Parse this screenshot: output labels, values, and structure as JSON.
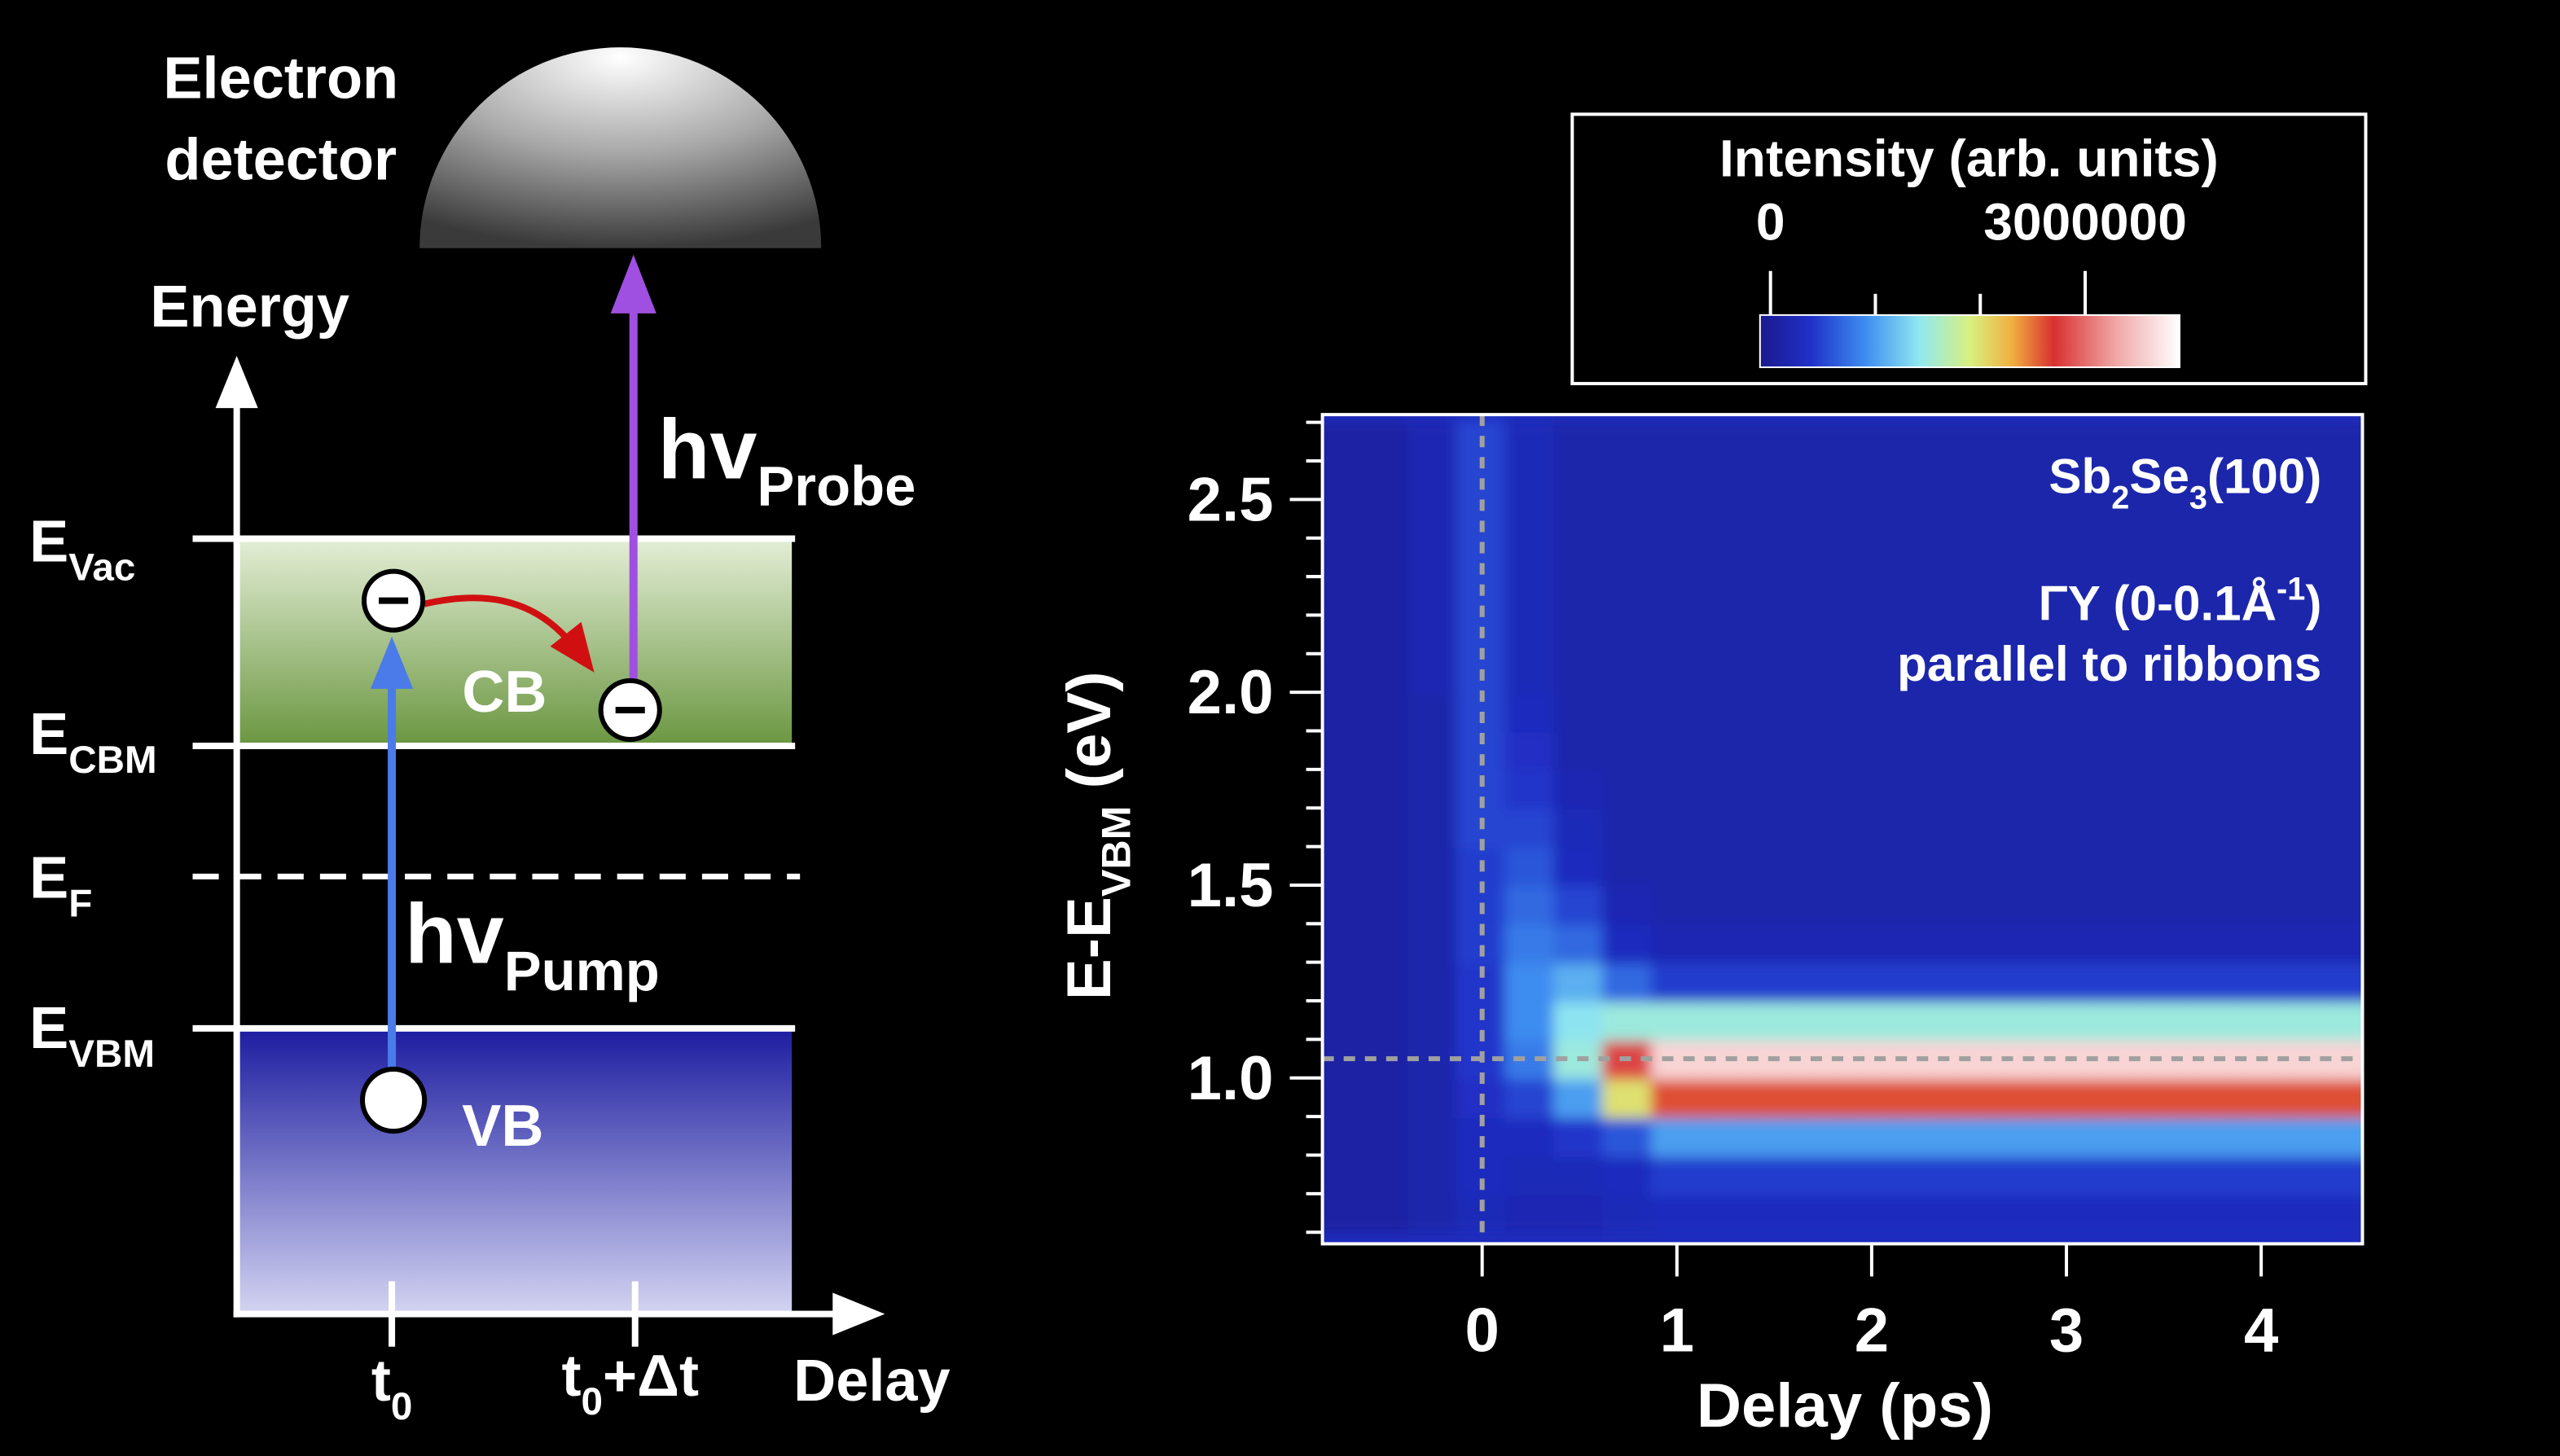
{
  "diagram": {
    "detector": [
      "Electron",
      "detector"
    ],
    "energy_axis": "Energy",
    "time_axis": "Delay",
    "levels": {
      "vac": [
        {
          "t": "E"
        },
        {
          "sub": "Vac"
        }
      ],
      "cbm": [
        {
          "t": "E"
        },
        {
          "sub": "CBM"
        }
      ],
      "f": [
        {
          "t": "E"
        },
        {
          "sub": "F"
        }
      ],
      "vbm": [
        {
          "t": "E"
        },
        {
          "sub": "VBM"
        }
      ]
    },
    "cb": "CB",
    "vb": "VB",
    "probe": [
      {
        "t": "hv"
      },
      {
        "sub": "Probe"
      }
    ],
    "pump": [
      {
        "t": "hv"
      },
      {
        "sub": "Pump"
      }
    ],
    "t0": [
      {
        "t": "t"
      },
      {
        "sub": "0"
      }
    ],
    "t1": [
      {
        "t": "t"
      },
      {
        "sub": "0"
      },
      {
        "t": "+Δt"
      }
    ]
  },
  "chart_data": {
    "type": "heatmap",
    "xlabel": "Delay (ps)",
    "ylabel": [
      {
        "t": "E-E"
      },
      {
        "sub": "VBM"
      },
      {
        "t": " (eV)"
      }
    ],
    "annotations": [
      [
        {
          "t": "Sb"
        },
        {
          "sub": "2"
        },
        {
          "t": "Se"
        },
        {
          "sub": "3"
        },
        {
          "t": "(100)"
        }
      ],
      [
        {
          "t": "ΓY (0-0.1Å"
        },
        {
          "sup": "-1"
        },
        {
          "t": ")"
        }
      ],
      [
        {
          "t": "parallel to ribbons"
        }
      ]
    ],
    "xlim": [
      -0.82,
      4.52
    ],
    "ylim": [
      0.57,
      2.72
    ],
    "xticks": [
      0,
      1,
      2,
      3,
      4
    ],
    "yticks": [
      {
        "value": 1,
        "label": "1.0"
      },
      1.5,
      {
        "value": 2,
        "label": "2.0"
      },
      2.5
    ],
    "yticks_minor": [
      0.6,
      0.7,
      0.8,
      0.9,
      1.1,
      1.2,
      1.3,
      1.4,
      1.6,
      1.7,
      1.8,
      1.9,
      2.1,
      2.2,
      2.3,
      2.4,
      2.6,
      2.7
    ],
    "markers": {
      "x": 0,
      "y": 1.05,
      "color": "#a0a0a0"
    },
    "colorbar": {
      "title": "Intensity (arb. units)",
      "ticks": [
        0,
        3000000
      ],
      "minor_ticks": [
        1000000,
        2000000
      ]
    },
    "zlim": [
      -100000,
      3900000
    ],
    "colormap": [
      [
        0,
        "#1a1a8c"
      ],
      [
        0.12,
        "#2030c8"
      ],
      [
        0.25,
        "#3c8cf0"
      ],
      [
        0.38,
        "#90e8f0"
      ],
      [
        0.5,
        "#d8f080"
      ],
      [
        0.6,
        "#f0b040"
      ],
      [
        0.7,
        "#d83030"
      ],
      [
        0.85,
        "#f0a8a8"
      ],
      [
        1,
        "#ffffff"
      ]
    ],
    "x": [
      -0.75,
      -0.5,
      -0.25,
      0,
      0.25,
      0.5,
      0.75,
      1,
      1.25,
      1.5,
      1.75,
      2,
      2.25,
      2.5,
      2.75,
      3,
      3.25,
      3.5,
      3.75,
      4,
      4.25,
      4.5
    ],
    "y": [
      0.65,
      0.75,
      0.85,
      0.95,
      1.05,
      1.15,
      1.25,
      1.35,
      1.45,
      1.55,
      1.65,
      1.75,
      1.85,
      1.95,
      2.05,
      2.15,
      2.25,
      2.35,
      2.45,
      2.55,
      2.65
    ],
    "z": [
      [
        80000,
        80000,
        150000,
        250000,
        200000,
        200000,
        250000,
        300000,
        300000,
        300000,
        300000,
        300000,
        300000,
        300000,
        300000,
        300000,
        300000,
        300000,
        300000,
        300000,
        300000,
        300000
      ],
      [
        80000,
        80000,
        150000,
        300000,
        250000,
        250000,
        300000,
        450000,
        450000,
        450000,
        450000,
        450000,
        450000,
        450000,
        450000,
        450000,
        450000,
        450000,
        450000,
        450000,
        450000,
        450000
      ],
      [
        80000,
        80000,
        150000,
        300000,
        300000,
        400000,
        600000,
        1000000,
        1000000,
        1000000,
        1000000,
        1000000,
        1000000,
        1000000,
        1000000,
        1000000,
        1000000,
        1000000,
        1000000,
        1000000,
        1000000,
        1000000
      ],
      [
        80000,
        80000,
        150000,
        350000,
        500000,
        1000000,
        2000000,
        2600000,
        2600000,
        2600000,
        2600000,
        2600000,
        2600000,
        2600000,
        2600000,
        2600000,
        2600000,
        2600000,
        2600000,
        2600000,
        2600000,
        2600000
      ],
      [
        80000,
        80000,
        150000,
        400000,
        800000,
        1500000,
        2800000,
        3600000,
        3600000,
        3600000,
        3600000,
        3600000,
        3600000,
        3600000,
        3600000,
        3600000,
        3600000,
        3600000,
        3600000,
        3600000,
        3600000,
        3600000
      ],
      [
        80000,
        80000,
        150000,
        400000,
        900000,
        1400000,
        1500000,
        1500000,
        1500000,
        1500000,
        1500000,
        1500000,
        1500000,
        1500000,
        1500000,
        1500000,
        1500000,
        1500000,
        1500000,
        1500000,
        1500000,
        1500000
      ],
      [
        80000,
        80000,
        150000,
        400000,
        900000,
        1100000,
        700000,
        450000,
        450000,
        450000,
        450000,
        450000,
        450000,
        450000,
        450000,
        450000,
        450000,
        450000,
        450000,
        450000,
        450000,
        450000
      ],
      [
        80000,
        80000,
        150000,
        450000,
        800000,
        700000,
        300000,
        200000,
        200000,
        200000,
        200000,
        200000,
        200000,
        200000,
        200000,
        200000,
        200000,
        200000,
        200000,
        200000,
        200000,
        200000
      ],
      [
        80000,
        80000,
        150000,
        450000,
        700000,
        500000,
        200000,
        150000,
        150000,
        150000,
        150000,
        150000,
        150000,
        150000,
        150000,
        150000,
        150000,
        150000,
        150000,
        150000,
        150000,
        150000
      ],
      [
        80000,
        80000,
        150000,
        450000,
        600000,
        300000,
        150000,
        150000,
        150000,
        150000,
        150000,
        150000,
        150000,
        150000,
        150000,
        150000,
        150000,
        150000,
        150000,
        150000,
        150000,
        150000
      ],
      [
        80000,
        80000,
        150000,
        500000,
        500000,
        250000,
        150000,
        150000,
        150000,
        150000,
        150000,
        150000,
        150000,
        150000,
        150000,
        150000,
        150000,
        150000,
        150000,
        150000,
        150000,
        150000
      ],
      [
        80000,
        80000,
        150000,
        500000,
        400000,
        200000,
        150000,
        150000,
        150000,
        150000,
        150000,
        150000,
        150000,
        150000,
        150000,
        150000,
        150000,
        150000,
        150000,
        150000,
        150000,
        150000
      ],
      [
        80000,
        80000,
        150000,
        500000,
        350000,
        150000,
        150000,
        150000,
        150000,
        150000,
        150000,
        150000,
        150000,
        150000,
        150000,
        150000,
        150000,
        150000,
        150000,
        150000,
        150000,
        150000
      ],
      [
        80000,
        80000,
        150000,
        500000,
        300000,
        150000,
        150000,
        150000,
        150000,
        150000,
        150000,
        150000,
        150000,
        150000,
        150000,
        150000,
        150000,
        150000,
        150000,
        150000,
        150000,
        150000
      ],
      [
        80000,
        80000,
        200000,
        500000,
        250000,
        150000,
        150000,
        150000,
        150000,
        150000,
        150000,
        150000,
        150000,
        150000,
        150000,
        150000,
        150000,
        150000,
        150000,
        150000,
        150000,
        150000
      ],
      [
        80000,
        80000,
        200000,
        500000,
        250000,
        150000,
        150000,
        150000,
        150000,
        150000,
        150000,
        150000,
        150000,
        150000,
        150000,
        150000,
        150000,
        150000,
        150000,
        150000,
        150000,
        150000
      ],
      [
        80000,
        80000,
        200000,
        500000,
        250000,
        150000,
        150000,
        150000,
        150000,
        150000,
        150000,
        150000,
        150000,
        150000,
        150000,
        150000,
        150000,
        150000,
        150000,
        150000,
        150000,
        150000
      ],
      [
        80000,
        80000,
        200000,
        500000,
        250000,
        150000,
        150000,
        150000,
        150000,
        150000,
        150000,
        150000,
        150000,
        150000,
        150000,
        150000,
        150000,
        150000,
        150000,
        150000,
        150000,
        150000
      ],
      [
        80000,
        80000,
        200000,
        500000,
        250000,
        150000,
        150000,
        150000,
        150000,
        150000,
        150000,
        150000,
        150000,
        150000,
        150000,
        150000,
        150000,
        150000,
        150000,
        150000,
        150000,
        150000
      ],
      [
        80000,
        80000,
        200000,
        500000,
        250000,
        150000,
        150000,
        150000,
        150000,
        150000,
        150000,
        150000,
        150000,
        150000,
        150000,
        150000,
        150000,
        150000,
        150000,
        150000,
        150000,
        150000
      ],
      [
        80000,
        80000,
        200000,
        500000,
        250000,
        150000,
        150000,
        150000,
        150000,
        150000,
        150000,
        150000,
        150000,
        150000,
        150000,
        150000,
        150000,
        150000,
        150000,
        150000,
        150000,
        150000
      ]
    ]
  }
}
